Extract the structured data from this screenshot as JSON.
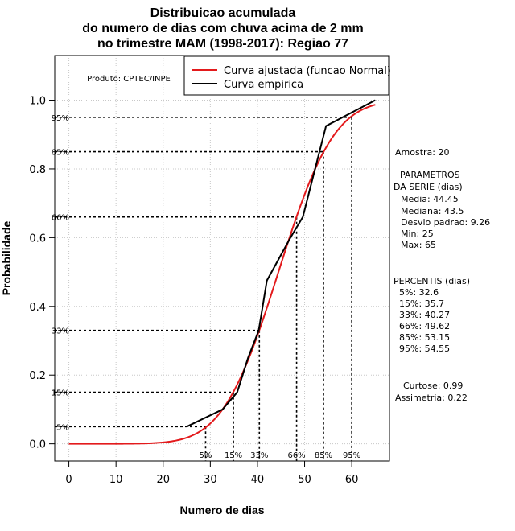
{
  "chart_data": {
    "type": "line",
    "title_lines": [
      "Distribuicao acumulada",
      "do numero de dias com chuva acima de 2 mm",
      "no trimestre MAM (1998-2017): Regiao 77"
    ],
    "xlabel": "Numero de dias",
    "ylabel": "Probabilidade",
    "xlim": [
      -3,
      68
    ],
    "ylim": [
      -0.05,
      1.13
    ],
    "xticks": [
      0,
      10,
      20,
      30,
      40,
      50,
      60
    ],
    "yticks": [
      0.0,
      0.2,
      0.4,
      0.6,
      0.8,
      1.0
    ],
    "ytick_labels": [
      "0.0",
      "0.2",
      "0.4",
      "0.6",
      "0.8",
      "1.0"
    ],
    "grid": true,
    "produto_label": "Produto: CPTEC/INPE",
    "legend": {
      "position": "top-right",
      "entries": [
        {
          "label": "Curva ajustada (funcao Normal)",
          "color": "#e31a1c"
        },
        {
          "label": "Curva empirica",
          "color": "#000000"
        }
      ]
    },
    "fitted_curve": {
      "name": "Curva ajustada (funcao Normal)",
      "mean": 44.45,
      "sd": 9.26,
      "x_from": 0,
      "x_to": 65,
      "color": "#e31a1c"
    },
    "empirical_curve": {
      "name": "Curva empirica",
      "color": "#000000",
      "x": [
        25,
        32.6,
        35.7,
        38,
        40.27,
        42,
        47,
        49.62,
        53.15,
        54.55,
        65
      ],
      "y": [
        0.05,
        0.1,
        0.15,
        0.25,
        0.33,
        0.475,
        0.6,
        0.66,
        0.85,
        0.925,
        1.0
      ]
    },
    "percentiles": [
      {
        "label": "5%",
        "p": 0.05,
        "x": 29.0
      },
      {
        "label": "15%",
        "p": 0.15,
        "x": 34.9
      },
      {
        "label": "33%",
        "p": 0.33,
        "x": 40.4
      },
      {
        "label": "66%",
        "p": 0.66,
        "x": 48.3
      },
      {
        "label": "85%",
        "p": 0.85,
        "x": 54.0
      },
      {
        "label": "95%",
        "p": 0.95,
        "x": 60.0
      }
    ]
  },
  "side_panel": {
    "amostra": "Amostra: 20",
    "parametros_title": "PARAMETROS",
    "parametros_subtitle": "DA SERIE (dias)",
    "parametros": [
      "Media: 44.45",
      "Mediana: 43.5",
      "Desvio padrao: 9.26",
      "Min: 25",
      "Max: 65"
    ],
    "percentis_title": "PERCENTIS (dias)",
    "percentis": [
      "5%: 32.6",
      "15%: 35.7",
      "33%: 40.27",
      "66%: 49.62",
      "85%: 53.15",
      "95%: 54.55"
    ],
    "curtose": "Curtose: 0.99",
    "assimetria": "Assimetria: 0.22"
  }
}
